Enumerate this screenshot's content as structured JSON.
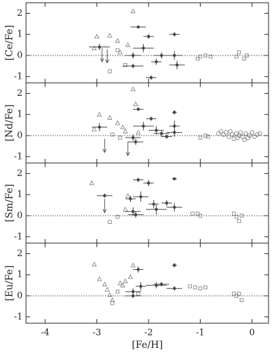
{
  "chart_data": [
    {
      "type": "scatter",
      "ylabel": "[Ce/Fe]",
      "xlim": [
        -4.37,
        0.32
      ],
      "ylim": [
        -1.3,
        2.5
      ],
      "xticks": [
        -4,
        -3,
        -2,
        -1,
        0
      ],
      "yticks": [
        -1,
        0,
        1,
        2
      ],
      "hline": 0,
      "series": [
        {
          "marker": "triangle",
          "color": "#777777",
          "x": [
            -3.0,
            -2.75,
            -2.6,
            -2.3,
            -2.4,
            -2.55,
            -3.05
          ],
          "y": [
            0.9,
            0.95,
            0.7,
            2.1,
            0.5,
            0.15,
            0.35
          ]
        },
        {
          "marker": "square",
          "color": "#777777",
          "x": [
            -2.75,
            -2.6,
            -2.45,
            -1.05,
            -1.0,
            -0.9,
            -0.8,
            -0.3,
            -0.25,
            -0.15,
            -0.1
          ],
          "y": [
            -0.75,
            0.25,
            -0.45,
            -0.15,
            -0.05,
            0.0,
            -0.05,
            -0.05,
            0.15,
            -0.15,
            0.0
          ]
        },
        {
          "marker": "errorbar",
          "color": "#444444",
          "x": [
            -2.95,
            -2.2,
            -2.0,
            -1.5,
            -2.3,
            -2.3,
            -2.1,
            -1.75,
            -1.85,
            -1.95,
            -1.5,
            -1.45
          ],
          "y": [
            0.4,
            1.35,
            0.9,
            1.0,
            0.0,
            -0.5,
            0.35,
            0.0,
            -0.3,
            -1.05,
            0.0,
            -0.45
          ],
          "xerr": [
            0.2,
            0.15,
            0.1,
            0.1,
            0.15,
            0.2,
            0.2,
            0.15,
            0.1,
            0.1,
            0.15,
            0.15
          ],
          "yerr": [
            0.15,
            0.05,
            0.12,
            0.1,
            0.15,
            0.1,
            0.2,
            0.15,
            0.15,
            0.1,
            0.2,
            0.2
          ]
        },
        {
          "marker": "arrow",
          "color": "#555555",
          "x": [
            -2.9,
            -2.8
          ],
          "y": [
            0.35,
            0.3
          ]
        }
      ]
    },
    {
      "type": "scatter",
      "ylabel": "[Nd/Fe]",
      "xlim": [
        -4.37,
        0.32
      ],
      "ylim": [
        -1.3,
        2.5
      ],
      "xticks": [
        -4,
        -3,
        -2,
        -1,
        0
      ],
      "yticks": [
        -1,
        0,
        1,
        2
      ],
      "hline": 0,
      "series": [
        {
          "marker": "triangle",
          "color": "#777777",
          "x": [
            -2.95,
            -2.75,
            -2.6,
            -2.5,
            -2.3,
            -2.25,
            -2.45,
            -2.2,
            -3.05
          ],
          "y": [
            1.0,
            0.85,
            0.6,
            0.4,
            2.2,
            1.5,
            0.2,
            0.15,
            0.3
          ]
        },
        {
          "marker": "square",
          "color": "#777777",
          "x": [
            -2.7,
            -2.55,
            -1.0,
            -0.9,
            -0.85
          ],
          "y": [
            0.05,
            -0.1,
            -0.1,
            0.0,
            -0.05
          ]
        },
        {
          "marker": "circle",
          "color": "#777777",
          "x": [
            -0.65,
            -0.6,
            -0.55,
            -0.5,
            -0.45,
            -0.42,
            -0.38,
            -0.35,
            -0.3,
            -0.25,
            -0.22,
            -0.18,
            -0.12,
            -0.08,
            -0.05,
            0.0,
            0.05,
            0.1,
            0.15,
            -0.28,
            -0.15
          ],
          "y": [
            0.1,
            0.2,
            0.05,
            0.15,
            -0.05,
            0.2,
            0.05,
            -0.15,
            0.1,
            0.0,
            0.15,
            -0.05,
            0.1,
            -0.1,
            0.0,
            0.15,
            -0.05,
            0.05,
            0.1,
            -0.1,
            -0.2
          ]
        },
        {
          "marker": "errorbar",
          "color": "#444444",
          "x": [
            -2.95,
            -2.2,
            -1.95,
            -1.5,
            -2.3,
            -2.25,
            -2.1,
            -1.85,
            -1.75,
            -1.5,
            -1.5,
            -1.65
          ],
          "y": [
            0.4,
            1.25,
            0.8,
            1.1,
            -0.1,
            -0.3,
            0.45,
            0.25,
            0.1,
            0.15,
            0.45,
            -0.05
          ],
          "xerr": [
            0.15,
            0.1,
            0.1,
            0.05,
            0.15,
            0.15,
            0.2,
            0.15,
            0.15,
            0.15,
            0.1,
            0.1
          ],
          "yerr": [
            0.2,
            0.08,
            0.1,
            0.1,
            0.15,
            0.15,
            0.2,
            0.2,
            0.15,
            0.2,
            0.25,
            0.1
          ]
        },
        {
          "marker": "arrow",
          "color": "#555555",
          "x": [
            -2.85,
            -2.4
          ],
          "y": [
            -0.15,
            -0.3
          ]
        }
      ]
    },
    {
      "type": "scatter",
      "ylabel": "[Sm/Fe]",
      "xlim": [
        -4.37,
        0.32
      ],
      "ylim": [
        -1.3,
        2.5
      ],
      "xticks": [
        -4,
        -3,
        -2,
        -1,
        0
      ],
      "yticks": [
        -1,
        0,
        1,
        2
      ],
      "hline": 0,
      "series": [
        {
          "marker": "triangle",
          "color": "#777777",
          "x": [
            -3.1,
            -2.4,
            -2.45
          ],
          "y": [
            1.55,
            0.95,
            0.3
          ]
        },
        {
          "marker": "square",
          "color": "#777777",
          "x": [
            -2.75,
            -2.6,
            -1.15,
            -1.05,
            -1.0,
            -0.35,
            -0.3,
            -0.25,
            -0.2
          ],
          "y": [
            -0.3,
            -0.05,
            0.1,
            0.1,
            0.0,
            0.1,
            -0.05,
            -0.25,
            0.0
          ]
        },
        {
          "marker": "errorbar",
          "color": "#444444",
          "x": [
            -2.85,
            -2.2,
            -2.0,
            -1.5,
            -2.35,
            -2.3,
            -2.25,
            -1.85,
            -1.9,
            -1.65,
            -1.5,
            -2.15
          ],
          "y": [
            0.95,
            1.7,
            1.55,
            1.75,
            0.8,
            0.2,
            0.05,
            0.3,
            0.55,
            0.6,
            0.4,
            0.9
          ],
          "xerr": [
            0.15,
            0.1,
            0.1,
            0.05,
            0.1,
            0.15,
            0.15,
            0.2,
            0.1,
            0.1,
            0.15,
            0.15
          ],
          "yerr": [
            0.1,
            0.1,
            0.15,
            0.05,
            0.15,
            0.2,
            0.15,
            0.25,
            0.2,
            0.15,
            0.2,
            0.25
          ]
        },
        {
          "marker": "arrow",
          "color": "#555555",
          "x": [
            -2.85
          ],
          "y": [
            0.8
          ]
        }
      ]
    },
    {
      "type": "scatter",
      "ylabel": "[Eu/Fe]",
      "xlabel": "[Fe/H]",
      "xlim": [
        -4.37,
        0.32
      ],
      "ylim": [
        -1.3,
        2.5
      ],
      "xticks": [
        -4,
        -3,
        -2,
        -1,
        0
      ],
      "yticks": [
        -1,
        0,
        1,
        2
      ],
      "hline": 0,
      "series": [
        {
          "marker": "triangle",
          "color": "#777777",
          "x": [
            -3.05,
            -2.95,
            -2.85,
            -2.8,
            -2.75,
            -2.7,
            -2.5,
            -2.45,
            -2.3,
            -2.35,
            -2.55
          ],
          "y": [
            1.5,
            0.8,
            0.55,
            0.3,
            0.05,
            -0.2,
            0.5,
            0.7,
            1.45,
            0.9,
            0.6
          ]
        },
        {
          "marker": "square",
          "color": "#777777",
          "x": [
            -2.7,
            -2.6,
            -2.2,
            -1.2,
            -1.1,
            -1.0,
            -0.9,
            -0.35,
            -0.3,
            -0.25,
            -0.2
          ],
          "y": [
            -0.35,
            0.2,
            0.1,
            0.45,
            0.4,
            0.35,
            0.4,
            0.1,
            0.0,
            0.1,
            -0.2
          ]
        },
        {
          "marker": "errorbar",
          "color": "#444444",
          "x": [
            -2.2,
            -1.5,
            -2.3,
            -2.3,
            -1.85,
            -1.75,
            -1.5,
            -2.15
          ],
          "y": [
            1.25,
            1.45,
            0.2,
            0.0,
            0.5,
            0.55,
            0.35,
            0.45
          ],
          "xerr": [
            0.1,
            0.05,
            0.15,
            0.15,
            0.2,
            0.15,
            0.15,
            0.1
          ],
          "yerr": [
            0.15,
            0.1,
            0.15,
            0.1,
            0.15,
            0.1,
            0.1,
            0.2
          ]
        }
      ]
    }
  ]
}
